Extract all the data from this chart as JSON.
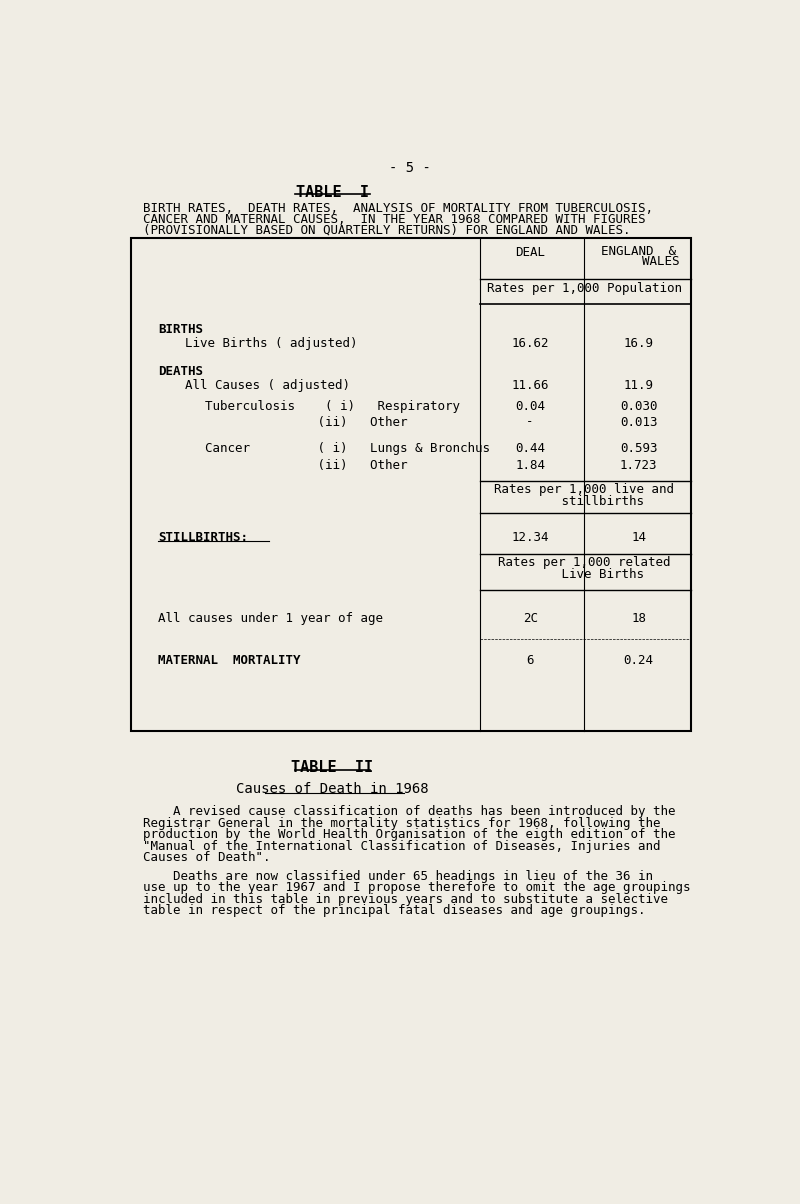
{
  "bg_color": "#f0ede4",
  "page_num": "- 5 -",
  "table1_title": "TABLE  I",
  "table1_subtitle_lines": [
    "BIRTH RATES,  DEATH RATES,  ANALYSIS OF MORTALITY FROM TUBERCULOSIS,",
    "CANCER AND MATERNAL CAUSES,  IN THE YEAR 1968 COMPARED WITH FIGURES",
    "(PROVISIONALLY BASED ON QUARTERLY RETURNS) FOR ENGLAND AND WALES."
  ],
  "col_header_left": "DEAL",
  "col_header_right1": "ENGLAND  &",
  "col_header_right2": "      WALES",
  "subheader1": "Rates per 1,000 Population",
  "births_label": "BIRTHS",
  "livebirth_label": "Live Births ( adjusted)",
  "livebirth_left": "16.62",
  "livebirth_right": "16.9",
  "deaths_label": "DEATHS",
  "allcauses_label": "All Causes ( adjusted)",
  "allcauses_left": "11.66",
  "allcauses_right": "11.9",
  "tb_label1": "Tuberculosis    ( i)   Respiratory",
  "tb_left1": "0.04",
  "tb_right1": "0.030",
  "tb_label2": "               (ii)   Other",
  "tb_left2": "-",
  "tb_right2": "0.013",
  "ca_label1": "Cancer         ( i)   Lungs & Bronchus",
  "ca_left1": "0.44",
  "ca_right1": "0.593",
  "ca_label2": "               (ii)   Other",
  "ca_left2": "1.84",
  "ca_right2": "1.723",
  "subheader2a": "Rates per 1,000 live and",
  "subheader2b": "     stillbirths",
  "stillbirths_label": "STILLBIRTHS:",
  "stillbirths_left": "12.34",
  "stillbirths_right": "14",
  "subheader3a": "Rates per 1,000 related",
  "subheader3b": "     Live Births",
  "under1_label": "All causes under 1 year of age",
  "under1_left": "2C",
  "under1_right": "18",
  "maternal_label": "MATERNAL  MORTALITY",
  "maternal_left": "6",
  "maternal_right": "0.24",
  "table2_title": "TABLE  II",
  "table2_subtitle": "Causes of Death in 1968",
  "para1_lines": [
    "    A revised cause classification of deaths has been introduced by the",
    "Registrar General in the mortality statistics for 1968, following the",
    "production by the World Health Organisation of the eigth edition of the",
    "\"Manual of the International Classification of Diseases, Injuries and",
    "Causes of Death\"."
  ],
  "para2_lines": [
    "    Deaths are now classified under 65 headings in lieu of the 36 in",
    "use up to the year 1967 and I propose therefore to omit the age groupings",
    "included in this table in previous years and to substitute a selective",
    "table in respect of the principal fatal diseases and age groupings."
  ]
}
